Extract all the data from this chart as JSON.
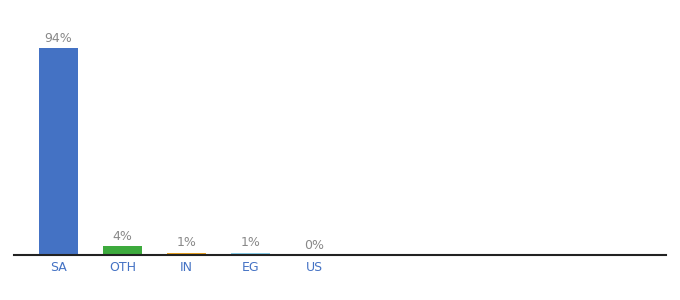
{
  "categories": [
    "SA",
    "OTH",
    "IN",
    "EG",
    "US"
  ],
  "values": [
    94,
    4,
    1,
    1,
    0
  ],
  "labels": [
    "94%",
    "4%",
    "1%",
    "1%",
    "0%"
  ],
  "bar_colors": [
    "#4472C4",
    "#3DAA3D",
    "#E8A020",
    "#87CEEB",
    "#4472C4"
  ],
  "ylim": [
    0,
    105
  ],
  "background_color": "#ffffff",
  "label_fontsize": 9,
  "tick_fontsize": 9,
  "bar_width": 0.6,
  "xlim_min": -0.7,
  "xlim_max": 9.5
}
